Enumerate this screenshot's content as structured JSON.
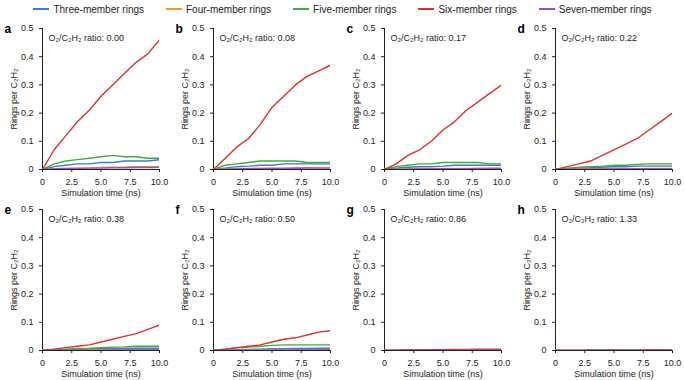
{
  "chart_data": [
    {
      "type": "line",
      "title": "a",
      "annotations": [
        "O₂/C₂H₂ ratio: 0.00"
      ],
      "x_label": "Simulation time (ns)",
      "y_label": "Rings per C₂H₂",
      "x": [
        0,
        1,
        2,
        3,
        4,
        5,
        6,
        7,
        8,
        9,
        10
      ],
      "xlim": [
        0,
        10
      ],
      "xticks": [
        0,
        2.5,
        {
          "value": 5,
          "label": "5.0"
        },
        7.5,
        {
          "value": 10,
          "label": "10.0"
        }
      ],
      "ylim": [
        0,
        0.5
      ],
      "yticks": [
        0,
        0.1,
        0.2,
        0.3,
        0.4,
        0.5
      ],
      "legend": "top",
      "series": [
        {
          "name": "Three-member rings",
          "color": "#3b7dc4",
          "values": [
            0,
            0.01,
            0.015,
            0.02,
            0.02,
            0.025,
            0.025,
            0.03,
            0.03,
            0.03,
            0.035
          ]
        },
        {
          "name": "Four-member rings",
          "color": "#f0962e",
          "values": [
            0,
            0.003,
            0.005,
            0.005,
            0.005,
            0.007,
            0.008,
            0.008,
            0.01,
            0.01,
            0.01
          ]
        },
        {
          "name": "Five-member rings",
          "color": "#43a843",
          "values": [
            0,
            0.02,
            0.03,
            0.035,
            0.04,
            0.045,
            0.05,
            0.045,
            0.045,
            0.04,
            0.04
          ]
        },
        {
          "name": "Six-member rings",
          "color": "#e0302c",
          "values": [
            0,
            0.07,
            0.12,
            0.17,
            0.21,
            0.26,
            0.3,
            0.34,
            0.38,
            0.41,
            0.46
          ]
        },
        {
          "name": "Seven-member rings",
          "color": "#9a4fc0",
          "values": [
            0,
            0.002,
            0.003,
            0.004,
            0.005,
            0.005,
            0.006,
            0.006,
            0.007,
            0.007,
            0.008
          ]
        }
      ]
    },
    {
      "type": "line",
      "title": "b",
      "annotations": [
        "O₂/C₂H₂ ratio: 0.08"
      ],
      "x_label": "Simulation time (ns)",
      "y_label": "Rings per C₂H₂",
      "x": [
        0,
        1,
        2,
        3,
        4,
        5,
        6,
        7,
        8,
        9,
        10
      ],
      "xlim": [
        0,
        10
      ],
      "xticks": [
        0,
        2.5,
        {
          "value": 5,
          "label": "5.0"
        },
        7.5,
        {
          "value": 10,
          "label": "10.0"
        }
      ],
      "ylim": [
        0,
        0.5
      ],
      "yticks": [
        0,
        0.1,
        0.2,
        0.3,
        0.4,
        0.5
      ],
      "series": [
        {
          "name": "Three-member rings",
          "color": "#3b7dc4",
          "values": [
            0,
            0.005,
            0.01,
            0.012,
            0.015,
            0.015,
            0.02,
            0.02,
            0.02,
            0.02,
            0.02
          ]
        },
        {
          "name": "Four-member rings",
          "color": "#f0962e",
          "values": [
            0,
            0.002,
            0.003,
            0.004,
            0.005,
            0.005,
            0.005,
            0.006,
            0.006,
            0.006,
            0.006
          ]
        },
        {
          "name": "Five-member rings",
          "color": "#43a843",
          "values": [
            0,
            0.015,
            0.02,
            0.025,
            0.03,
            0.03,
            0.03,
            0.03,
            0.025,
            0.025,
            0.025
          ]
        },
        {
          "name": "Six-member rings",
          "color": "#e0302c",
          "values": [
            0,
            0.04,
            0.08,
            0.11,
            0.16,
            0.22,
            0.26,
            0.3,
            0.33,
            0.35,
            0.37
          ]
        },
        {
          "name": "Seven-member rings",
          "color": "#9a4fc0",
          "values": [
            0,
            0.001,
            0.002,
            0.003,
            0.003,
            0.004,
            0.004,
            0.004,
            0.005,
            0.005,
            0.005
          ]
        }
      ]
    },
    {
      "type": "line",
      "title": "c",
      "annotations": [
        "O₂/C₂H₂ ratio: 0.17"
      ],
      "x_label": "Simulation time (ns)",
      "y_label": "Rings per C₂H₂",
      "x": [
        0,
        1,
        2,
        3,
        4,
        5,
        6,
        7,
        8,
        9,
        10
      ],
      "xlim": [
        0,
        10
      ],
      "xticks": [
        0,
        2.5,
        {
          "value": 5,
          "label": "5.0"
        },
        7.5,
        {
          "value": 10,
          "label": "10.0"
        }
      ],
      "ylim": [
        0,
        0.5
      ],
      "yticks": [
        0,
        0.1,
        0.2,
        0.3,
        0.4,
        0.5
      ],
      "series": [
        {
          "name": "Three-member rings",
          "color": "#3b7dc4",
          "values": [
            0,
            0.005,
            0.008,
            0.01,
            0.01,
            0.012,
            0.015,
            0.015,
            0.015,
            0.015,
            0.015
          ]
        },
        {
          "name": "Four-member rings",
          "color": "#f0962e",
          "values": [
            0,
            0.001,
            0.002,
            0.003,
            0.003,
            0.004,
            0.004,
            0.004,
            0.005,
            0.005,
            0.005
          ]
        },
        {
          "name": "Five-member rings",
          "color": "#43a843",
          "values": [
            0,
            0.01,
            0.015,
            0.02,
            0.02,
            0.025,
            0.025,
            0.025,
            0.025,
            0.02,
            0.02
          ]
        },
        {
          "name": "Six-member rings",
          "color": "#e0302c",
          "values": [
            0,
            0.02,
            0.05,
            0.07,
            0.1,
            0.14,
            0.17,
            0.21,
            0.24,
            0.27,
            0.3
          ]
        },
        {
          "name": "Seven-member rings",
          "color": "#9a4fc0",
          "values": [
            0,
            0.001,
            0.001,
            0.002,
            0.002,
            0.003,
            0.003,
            0.003,
            0.003,
            0.004,
            0.004
          ]
        }
      ]
    },
    {
      "type": "line",
      "title": "d",
      "annotations": [
        "O₂/C₂H₂ ratio: 0.22"
      ],
      "x_label": "Simulation time (ns)",
      "y_label": "Rings per C₂H₂",
      "x": [
        0,
        1,
        2,
        3,
        4,
        5,
        6,
        7,
        8,
        9,
        10
      ],
      "xlim": [
        0,
        10
      ],
      "xticks": [
        0,
        2.5,
        {
          "value": 5,
          "label": "5.0"
        },
        7.5,
        {
          "value": 10,
          "label": "10.0"
        }
      ],
      "ylim": [
        0,
        0.5
      ],
      "yticks": [
        0,
        0.1,
        0.2,
        0.3,
        0.4,
        0.5
      ],
      "series": [
        {
          "name": "Three-member rings",
          "color": "#3b7dc4",
          "values": [
            0,
            0.003,
            0.005,
            0.006,
            0.008,
            0.01,
            0.01,
            0.012,
            0.012,
            0.012,
            0.012
          ]
        },
        {
          "name": "Four-member rings",
          "color": "#f0962e",
          "values": [
            0,
            0.001,
            0.001,
            0.002,
            0.002,
            0.003,
            0.003,
            0.003,
            0.004,
            0.004,
            0.004
          ]
        },
        {
          "name": "Five-member rings",
          "color": "#43a843",
          "values": [
            0,
            0.005,
            0.008,
            0.01,
            0.012,
            0.015,
            0.015,
            0.018,
            0.02,
            0.02,
            0.02
          ]
        },
        {
          "name": "Six-member rings",
          "color": "#e0302c",
          "values": [
            0,
            0.01,
            0.02,
            0.03,
            0.05,
            0.07,
            0.09,
            0.11,
            0.14,
            0.17,
            0.2
          ]
        },
        {
          "name": "Seven-member rings",
          "color": "#9a4fc0",
          "values": [
            0,
            0.001,
            0.001,
            0.001,
            0.002,
            0.002,
            0.002,
            0.003,
            0.003,
            0.003,
            0.003
          ]
        }
      ]
    },
    {
      "type": "line",
      "title": "e",
      "annotations": [
        "O₂/C₂H₂ ratio: 0.38"
      ],
      "x_label": "Simulation time (ns)",
      "y_label": "Rings per C₂H₂",
      "x": [
        0,
        1,
        2,
        3,
        4,
        5,
        6,
        7,
        8,
        9,
        10
      ],
      "xlim": [
        0,
        10
      ],
      "xticks": [
        0,
        2.5,
        {
          "value": 5,
          "label": "5.0"
        },
        7.5,
        {
          "value": 10,
          "label": "10.0"
        }
      ],
      "ylim": [
        0,
        0.5
      ],
      "yticks": [
        0,
        0.1,
        0.2,
        0.3,
        0.4,
        0.5
      ],
      "series": [
        {
          "name": "Three-member rings",
          "color": "#3b7dc4",
          "values": [
            0,
            0.002,
            0.003,
            0.004,
            0.005,
            0.006,
            0.007,
            0.007,
            0.008,
            0.008,
            0.008
          ]
        },
        {
          "name": "Four-member rings",
          "color": "#f0962e",
          "values": [
            0,
            0.001,
            0.001,
            0.001,
            0.002,
            0.002,
            0.002,
            0.002,
            0.003,
            0.003,
            0.003
          ]
        },
        {
          "name": "Five-member rings",
          "color": "#43a843",
          "values": [
            0,
            0.003,
            0.005,
            0.007,
            0.008,
            0.01,
            0.012,
            0.013,
            0.015,
            0.015,
            0.015
          ]
        },
        {
          "name": "Six-member rings",
          "color": "#e0302c",
          "values": [
            0,
            0.005,
            0.01,
            0.015,
            0.02,
            0.03,
            0.04,
            0.05,
            0.06,
            0.075,
            0.09
          ]
        },
        {
          "name": "Seven-member rings",
          "color": "#9a4fc0",
          "values": [
            0,
            0,
            0.001,
            0.001,
            0.001,
            0.001,
            0.002,
            0.002,
            0.002,
            0.002,
            0.002
          ]
        }
      ]
    },
    {
      "type": "line",
      "title": "f",
      "annotations": [
        "O₂/C₂H₂ ratio: 0.50"
      ],
      "x_label": "Simulation time (ns)",
      "y_label": "Rings per C₂H₂",
      "x": [
        0,
        1,
        2,
        3,
        4,
        5,
        6,
        7,
        8,
        9,
        10
      ],
      "xlim": [
        0,
        10
      ],
      "xticks": [
        0,
        2.5,
        {
          "value": 5,
          "label": "5.0"
        },
        7.5,
        {
          "value": 10,
          "label": "10.0"
        }
      ],
      "ylim": [
        0,
        0.5
      ],
      "yticks": [
        0,
        0.1,
        0.2,
        0.3,
        0.4,
        0.5
      ],
      "series": [
        {
          "name": "Three-member rings",
          "color": "#3b7dc4",
          "values": [
            0,
            0.002,
            0.003,
            0.004,
            0.005,
            0.006,
            0.006,
            0.007,
            0.007,
            0.008,
            0.008
          ]
        },
        {
          "name": "Four-member rings",
          "color": "#f0962e",
          "values": [
            0,
            0.001,
            0.001,
            0.001,
            0.002,
            0.002,
            0.002,
            0.002,
            0.002,
            0.003,
            0.003
          ]
        },
        {
          "name": "Five-member rings",
          "color": "#43a843",
          "values": [
            0,
            0.005,
            0.01,
            0.012,
            0.015,
            0.018,
            0.02,
            0.02,
            0.02,
            0.02,
            0.02
          ]
        },
        {
          "name": "Six-member rings",
          "color": "#e0302c",
          "values": [
            0,
            0.005,
            0.01,
            0.015,
            0.02,
            0.03,
            0.04,
            0.045,
            0.055,
            0.065,
            0.07
          ]
        },
        {
          "name": "Seven-member rings",
          "color": "#9a4fc0",
          "values": [
            0,
            0,
            0.001,
            0.001,
            0.001,
            0.001,
            0.001,
            0.002,
            0.002,
            0.002,
            0.002
          ]
        }
      ]
    },
    {
      "type": "line",
      "title": "g",
      "annotations": [
        "O₂/C₂H₂ ratio: 0.86"
      ],
      "x_label": "Simulation time (ns)",
      "y_label": "Rings per C₂H₂",
      "x": [
        0,
        1,
        2,
        3,
        4,
        5,
        6,
        7,
        8,
        9,
        10
      ],
      "xlim": [
        0,
        10
      ],
      "xticks": [
        0,
        2.5,
        {
          "value": 5,
          "label": "5.0"
        },
        7.5,
        {
          "value": 10,
          "label": "10.0"
        }
      ],
      "ylim": [
        0,
        0.5
      ],
      "yticks": [
        0,
        0.1,
        0.2,
        0.3,
        0.4,
        0.5
      ],
      "series": [
        {
          "name": "Three-member rings",
          "color": "#3b7dc4",
          "values": [
            0,
            0,
            0.001,
            0.001,
            0.001,
            0.001,
            0.001,
            0.001,
            0.002,
            0.002,
            0.002
          ]
        },
        {
          "name": "Four-member rings",
          "color": "#f0962e",
          "values": [
            0,
            0,
            0,
            0,
            0,
            0.001,
            0.001,
            0.001,
            0.001,
            0.001,
            0.001
          ]
        },
        {
          "name": "Five-member rings",
          "color": "#43a843",
          "values": [
            0,
            0,
            0.001,
            0.001,
            0.001,
            0.002,
            0.002,
            0.002,
            0.002,
            0.002,
            0.002
          ]
        },
        {
          "name": "Six-member rings",
          "color": "#e0302c",
          "values": [
            0,
            0.001,
            0.002,
            0.002,
            0.003,
            0.003,
            0.004,
            0.004,
            0.005,
            0.005,
            0.005
          ]
        },
        {
          "name": "Seven-member rings",
          "color": "#9a4fc0",
          "values": [
            0,
            0,
            0,
            0,
            0,
            0,
            0,
            0.001,
            0.001,
            0.001,
            0.001
          ]
        }
      ]
    },
    {
      "type": "line",
      "title": "h",
      "annotations": [
        "O₂/C₂H₂ ratio: 1.33"
      ],
      "x_label": "Simulation time (ns)",
      "y_label": "Rings per C₂H₂",
      "x": [
        0,
        1,
        2,
        3,
        4,
        5,
        6,
        7,
        8,
        9,
        10
      ],
      "xlim": [
        0,
        10
      ],
      "xticks": [
        0,
        2.5,
        {
          "value": 5,
          "label": "5.0"
        },
        7.5,
        {
          "value": 10,
          "label": "10.0"
        }
      ],
      "ylim": [
        0,
        0.5
      ],
      "yticks": [
        0,
        0.1,
        0.2,
        0.3,
        0.4,
        0.5
      ],
      "series": [
        {
          "name": "Three-member rings",
          "color": "#3b7dc4",
          "values": [
            0,
            0,
            0,
            0,
            0.001,
            0.001,
            0.001,
            0.001,
            0.001,
            0.001,
            0.001
          ]
        },
        {
          "name": "Four-member rings",
          "color": "#f0962e",
          "values": [
            0,
            0,
            0,
            0,
            0,
            0,
            0,
            0,
            0,
            0,
            0
          ]
        },
        {
          "name": "Five-member rings",
          "color": "#43a843",
          "values": [
            0,
            0,
            0,
            0.001,
            0.001,
            0.001,
            0.001,
            0.001,
            0.001,
            0.001,
            0.001
          ]
        },
        {
          "name": "Six-member rings",
          "color": "#e0302c",
          "values": [
            0,
            0,
            0,
            0.001,
            0.001,
            0.001,
            0.001,
            0.001,
            0.002,
            0.002,
            0.002
          ]
        },
        {
          "name": "Seven-member rings",
          "color": "#9a4fc0",
          "values": [
            0,
            0,
            0,
            0,
            0,
            0,
            0,
            0,
            0,
            0,
            0
          ]
        }
      ]
    }
  ]
}
